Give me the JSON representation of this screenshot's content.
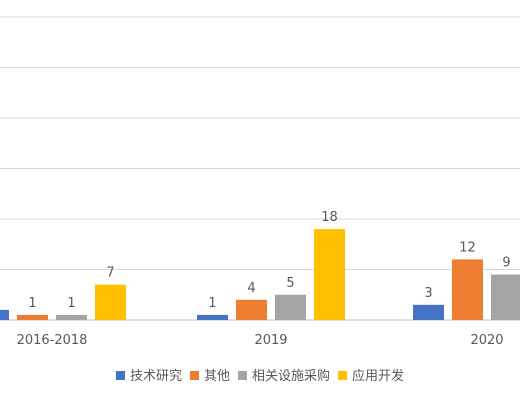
{
  "chart_data": {
    "type": "bar",
    "categories": [
      "2016-2018",
      "2019",
      "2020"
    ],
    "series": [
      {
        "name": "技术研究",
        "color": "#4472c4",
        "values": [
          2,
          1,
          3
        ]
      },
      {
        "name": "其他",
        "color": "#ed7d31",
        "values": [
          1,
          4,
          12
        ]
      },
      {
        "name": "相关设施采购",
        "color": "#a5a5a5",
        "values": [
          1,
          5,
          9
        ]
      },
      {
        "name": "应用开发",
        "color": "#ffc000",
        "values": [
          7,
          18,
          null
        ]
      }
    ],
    "data_labels": [
      [
        null,
        1,
        3
      ],
      [
        1,
        4,
        12
      ],
      [
        1,
        5,
        9
      ],
      [
        7,
        18,
        null
      ]
    ],
    "ylim": [
      0,
      60
    ],
    "y_gridline_step": 10,
    "grid": true,
    "legend_position": "bottom",
    "title": "",
    "xlabel": "",
    "ylabel": ""
  }
}
